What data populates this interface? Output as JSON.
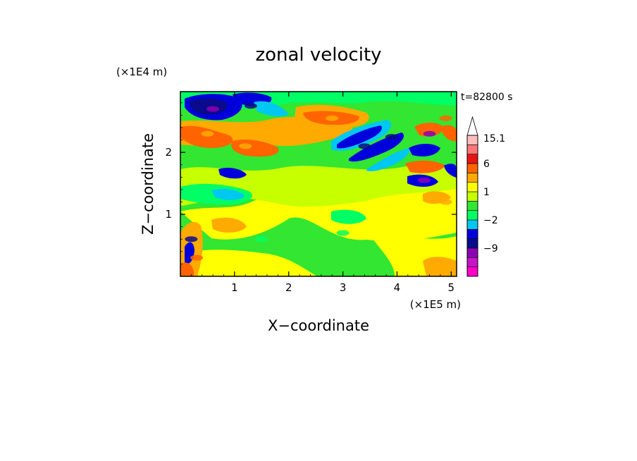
{
  "chart_data": {
    "type": "heatmap",
    "title": "zonal velocity",
    "xlabel": "X−coordinate",
    "ylabel": "Z−coordinate",
    "x_multiplier": "(×1E5 m)",
    "y_multiplier": "(×1E4 m)",
    "time_label": "t=82800 s",
    "xlim": [
      0,
      5.1
    ],
    "ylim": [
      0,
      2.98
    ],
    "x_ticks": [
      1,
      2,
      3,
      4,
      5
    ],
    "y_ticks": [
      1,
      2
    ],
    "x_tick_labels": [
      "1",
      "2",
      "3",
      "4",
      "5"
    ],
    "y_tick_labels": [
      "1",
      "2"
    ],
    "colorbar": {
      "levels": [
        -15,
        -12,
        -9,
        -6,
        -3,
        -2,
        -1,
        0,
        1,
        2,
        3,
        6,
        9,
        12,
        15.1
      ],
      "colors": [
        "#ff00c8",
        "#c814c8",
        "#8c00b4",
        "#0a0a8c",
        "#0000dc",
        "#00c8f0",
        "#00ff64",
        "#32e632",
        "#c8ff00",
        "#ffff00",
        "#ffaa00",
        "#ff6400",
        "#e61414",
        "#ff7878",
        "#ffbebe"
      ],
      "tick_labels": [
        {
          "value": 15.1,
          "label": "15.1"
        },
        {
          "value": 6,
          "label": "6"
        },
        {
          "value": 1,
          "label": "1"
        },
        {
          "value": -2,
          "label": "−2"
        },
        {
          "value": -9,
          "label": "−9"
        }
      ],
      "extend": "max"
    },
    "features": [
      {
        "x": 0.6,
        "z": 2.7,
        "value": -7
      },
      {
        "x": 1.3,
        "z": 2.75,
        "value": -6
      },
      {
        "x": 2.8,
        "z": 2.55,
        "value": 5
      },
      {
        "x": 3.4,
        "z": 2.1,
        "value": -6
      },
      {
        "x": 3.9,
        "z": 2.25,
        "value": -5
      },
      {
        "x": 4.6,
        "z": 2.3,
        "value": -7
      },
      {
        "x": 4.5,
        "z": 1.55,
        "value": -7
      },
      {
        "x": 4.9,
        "z": 2.55,
        "value": 6
      },
      {
        "x": 4.6,
        "z": 1.8,
        "value": 6
      },
      {
        "x": 0.5,
        "z": 2.3,
        "value": 5
      },
      {
        "x": 1.2,
        "z": 2.1,
        "value": 5
      },
      {
        "x": 0.2,
        "z": 0.6,
        "value": -6
      },
      {
        "x": 0.3,
        "z": 0.3,
        "value": 6
      },
      {
        "x": 4.9,
        "z": 1.2,
        "value": 5
      },
      {
        "x": 3.0,
        "z": 0.7,
        "value": -1
      },
      {
        "x": 1.5,
        "z": 0.6,
        "value": -1
      }
    ]
  }
}
